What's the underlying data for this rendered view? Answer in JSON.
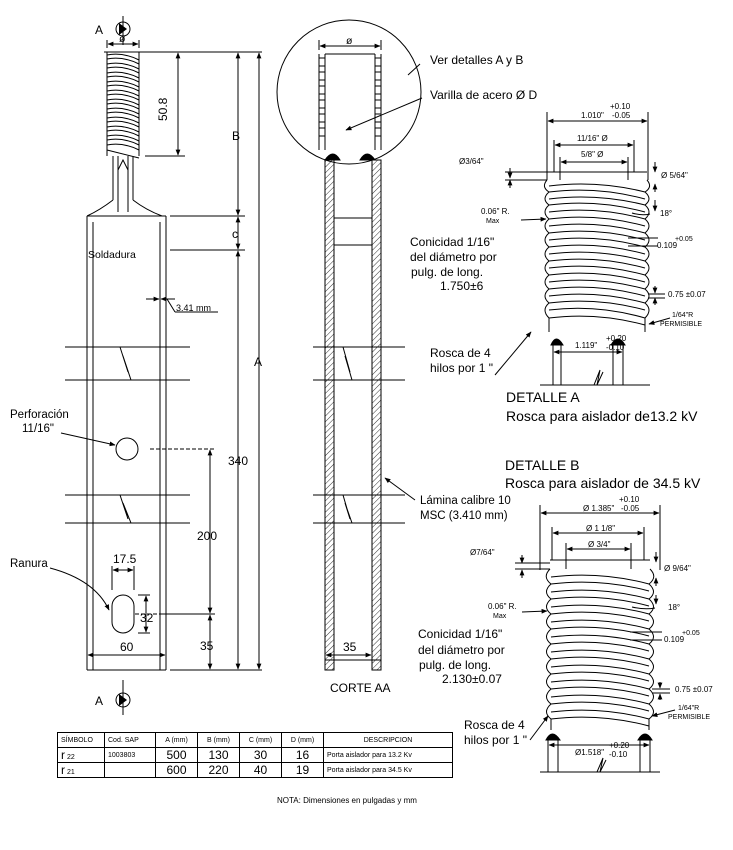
{
  "left_view": {
    "section_marker_top": "A",
    "section_marker_bottom": "A",
    "diameter_symbol": "ø",
    "dim_thread_length": "50.8",
    "dim_b": "B",
    "dim_c": "c",
    "dim_a": "A",
    "label_weld": "Soldadura",
    "dim_wall": "3.41 mm",
    "label_hole_1": "Perforación",
    "label_hole_2": "11/16\"",
    "dim_total": "340",
    "dim_200": "200",
    "label_slot": "Ranura",
    "dim_slot_width": "17.5",
    "dim_slot_height": "32",
    "dim_35": "35",
    "dim_60": "60"
  },
  "section_view": {
    "diameter_symbol": "ø",
    "callout_details": "Ver detalles A y B",
    "callout_rod": "Varilla de acero Ø D",
    "callout_sheet_1": "Lámina calibre 10",
    "callout_sheet_2": "MSC (3.410 mm)",
    "dim_35": "35",
    "title": "CORTE AA"
  },
  "detail_a": {
    "tol_plus": "+0.10",
    "tol_minus": "-0.05",
    "dim_outer": "1.010\"",
    "dim_mid": "11/16\" Ø",
    "dim_inner": "5/8\" Ø",
    "dim_chamfer_left": "Ø3/64\"",
    "dim_chamfer_right": "Ø 5/64\"",
    "radius_1": "0.06\" R.",
    "radius_2": "Max",
    "angle": "18°",
    "pitch": "0.109",
    "pitch_tol": "+0.05",
    "taper_1": "Conicidad 1/16\"",
    "taper_2": "del diámetro por",
    "taper_3": "pulg. de long.",
    "taper_4": "1.750±6",
    "dim_075": "0.75 ±0.07",
    "permissible_1": "1/64\"R",
    "permissible_2": "PERMISIBLE",
    "thread_note_1": "Rosca de 4",
    "thread_note_2": "hilos por 1 \"",
    "dim_base": "1.119\"",
    "dim_base_tol_plus": "+0.20",
    "dim_base_tol_minus": "-0.10",
    "title": "DETALLE A",
    "subtitle": "Rosca para aislador de13.2 kV"
  },
  "detail_b": {
    "title": "DETALLE B",
    "subtitle": "Rosca para aislador de 34.5 kV",
    "tol_plus": "+0.10",
    "tol_minus": "-0.05",
    "dim_outer": "Ø 1.385\"",
    "dim_mid": "Ø 1 1/8\"",
    "dim_inner": "Ø 3/4\"",
    "dim_chamfer_left": "Ø7/64\"",
    "dim_chamfer_right": "Ø 9/64\"",
    "radius_1": "0.06\" R.",
    "radius_2": "Max",
    "angle": "18°",
    "pitch": "0.109",
    "pitch_tol": "+0.05",
    "taper_1": "Conicidad 1/16\"",
    "taper_2": "del diámetro por",
    "taper_3": "pulg. de long.",
    "taper_4": "2.130±0.07",
    "dim_075": "0.75 ±0.07",
    "permissible_1": "1/64\"R",
    "permissible_2": "PERMISIBLE",
    "thread_note_1": "Rosca de 4",
    "thread_note_2": "hilos por 1 \"",
    "dim_base": "Ø1.518\"",
    "dim_base_tol_plus": "+0.20",
    "dim_base_tol_minus": "-0.10"
  },
  "spec_table": {
    "headers": [
      "SÍMBOLO",
      "Cod. SAP",
      "A (mm)",
      "B (mm)",
      "C (mm)",
      "D (mm)",
      "DESCRIPCION"
    ],
    "rows": [
      {
        "symbol": "r",
        "symbol_sub": "22",
        "sap": "1003803",
        "a": "500",
        "b": "130",
        "c": "30",
        "d": "16",
        "desc": "Porta aislador para 13.2 Kv"
      },
      {
        "symbol": "r",
        "symbol_sub": "21",
        "sap": "",
        "a": "600",
        "b": "220",
        "c": "40",
        "d": "19",
        "desc": "Porta aislador para 34.5 Kv"
      }
    ]
  },
  "note": "NOTA:  Dimensiones en pulgadas y mm"
}
